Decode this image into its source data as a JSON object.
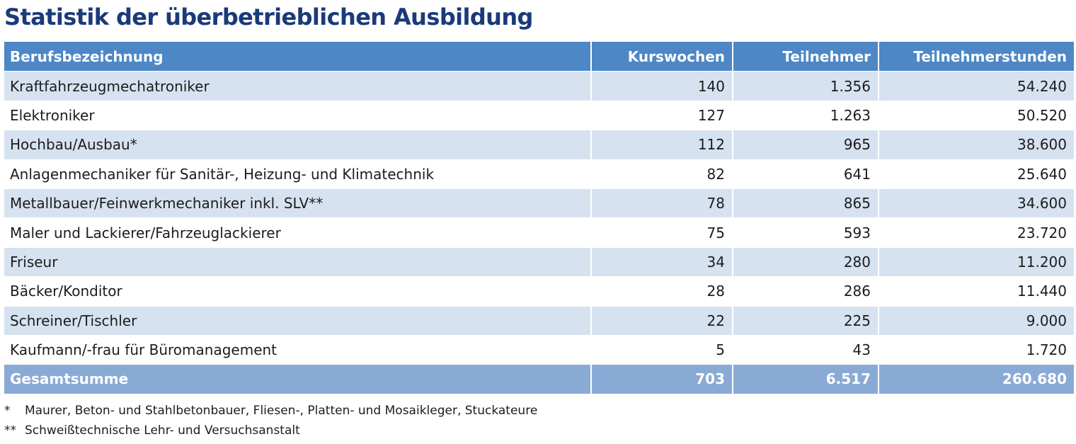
{
  "title": "Statistik der überbetrieblichen Ausbildung",
  "table": {
    "headers": [
      "Berufsbezeichnung",
      "Kurswochen",
      "Teilnehmer",
      "Teilnehmerstunden"
    ],
    "rows": [
      [
        "Kraftfahrzeugmechatroniker",
        "140",
        "1.356",
        "54.240"
      ],
      [
        "Elektroniker",
        "127",
        "1.263",
        "50.520"
      ],
      [
        "Hochbau/Ausbau*",
        "112",
        "965",
        "38.600"
      ],
      [
        "Anlagenmechaniker für Sanitär-, Heizung- und Klimatechnik",
        "82",
        "641",
        "25.640"
      ],
      [
        "Metallbauer/Feinwerkmechaniker inkl. SLV**",
        "78",
        "865",
        "34.600"
      ],
      [
        "Maler und Lackierer/Fahrzeuglackierer",
        "75",
        "593",
        "23.720"
      ],
      [
        "Friseur",
        "34",
        "280",
        "11.200"
      ],
      [
        "Bäcker/Konditor",
        "28",
        "286",
        "11.440"
      ],
      [
        "Schreiner/Tischler",
        "22",
        "225",
        "9.000"
      ],
      [
        "Kaufmann/-frau für Büromanagement",
        "5",
        "43",
        "1.720"
      ]
    ],
    "total": [
      "Gesamtsumme",
      "703",
      "6.517",
      "260.680"
    ]
  },
  "footnotes": [
    {
      "mark": "*",
      "text": "Maurer, Beton- und Stahlbetonbauer, Fliesen-, Platten- und Mosaikleger, Stuckateure"
    },
    {
      "mark": "**",
      "text": "Schweißtechnische Lehr- und Versuchsanstalt"
    }
  ],
  "colors": {
    "title": "#1a3a7a",
    "header_bg": "#4d87c6",
    "row_alt_bg": "#d6e2f0",
    "total_bg": "#8aaad6"
  }
}
